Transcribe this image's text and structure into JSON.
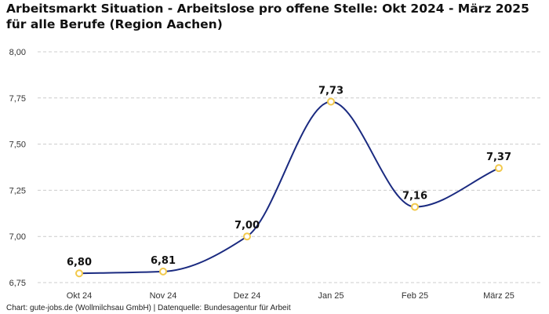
{
  "chart_data": {
    "type": "line",
    "title": "Arbeitsmarkt Situation - Arbeitslose pro offene Stelle: Okt 2024 - März 2025 für alle Berufe (Region Aachen)",
    "categories": [
      "Okt 24",
      "Nov 24",
      "Dez 24",
      "Jan 25",
      "Feb 25",
      "März 25"
    ],
    "series": [
      {
        "values": [
          6.8,
          6.81,
          7.0,
          7.73,
          7.16,
          7.37
        ],
        "labels": [
          "6,80",
          "6,81",
          "7,00",
          "7,73",
          "7,16",
          "7,37"
        ]
      }
    ],
    "yticks": [
      6.75,
      7.0,
      7.25,
      7.5,
      7.75,
      8.0
    ],
    "ytick_labels": [
      "6,75",
      "7,00",
      "7,25",
      "7,50",
      "7,75",
      "8,00"
    ],
    "ylim": [
      6.75,
      8.0
    ],
    "grid": "horizontal-dashed",
    "line_color": "#1a2a80",
    "marker_color": "#f2c94c",
    "grid_color": "#cccccc"
  },
  "source": "Chart: gute-jobs.de (Wollmilchsau GmbH) | Datenquelle: Bundesagentur für Arbeit"
}
